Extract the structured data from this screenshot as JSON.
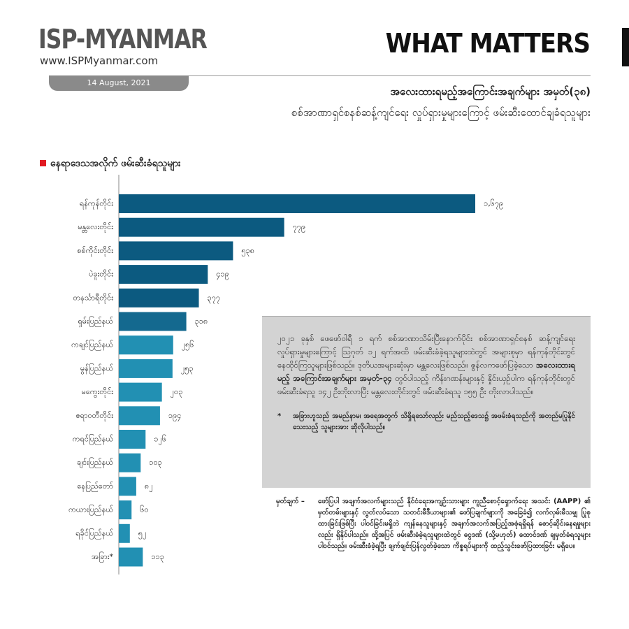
{
  "header": {
    "brand": "ISP-MYANMAR",
    "website": "www.ISPMyanmar.com",
    "date": "14 August, 2021",
    "series_name": "WHAT MATTERS",
    "title": "အလေးထားရမည့်အကြောင်းအချက်များ အမှတ်(၃၈)",
    "subtitle": "စစ်အာဏာရှင်စနစ်ဆန့်ကျင်ရေး လှုပ်ရှားမှုများကြောင့် ဖမ်းဆီးထောင်ချခံရသူများ"
  },
  "chart_data": {
    "type": "bar",
    "orientation": "horizontal",
    "title": "နေရာဒေသအလိုက် ဖမ်းဆီးခံရသူများ",
    "categories": [
      "ရန်ကုန်တိုင်း",
      "မန္တလေးတိုင်း",
      "စစ်ကိုင်းတိုင်း",
      "ပဲခူးတိုင်း",
      "တနင်္သာရီတိုင်း",
      "ရှမ်းပြည်နယ်",
      "ကချင်ပြည်နယ်",
      "မွန်ပြည်နယ်",
      "မကွေးတိုင်း",
      "ဧရာဝတီတိုင်း",
      "ကရင်ပြည်နယ်",
      "ချင်းပြည်နယ်",
      "နေပြည်တော်",
      "ကယားပြည်နယ်",
      "ရခိုင်ပြည်နယ်",
      "အခြား*"
    ],
    "values": [
      1679,
      779,
      538,
      419,
      377,
      318,
      256,
      253,
      203,
      194,
      126,
      103,
      82,
      60,
      52,
      113
    ],
    "value_labels": [
      "၁,၆၇၉",
      "၇၇၉",
      "၅၃၈",
      "၄၁၉",
      "၃၇၇",
      "၃၁၈",
      "၂၅၆",
      "၂၅၃",
      "၂၀၃",
      "၁၉၄",
      "၁၂၆",
      "၁၀၃",
      "၈၂",
      "၆၀",
      "၅၂",
      "၁၁၃"
    ],
    "colors": [
      "#0c5a80",
      "#0c5a80",
      "#0c5a80",
      "#0c5a80",
      "#0c5a80",
      "#14698f",
      "#2290b3",
      "#2290b3",
      "#2290b3",
      "#2290b3",
      "#2290b3",
      "#2290b3",
      "#2290b3",
      "#2290b3",
      "#2290b3",
      "#2290b3"
    ]
  },
  "summary": {
    "text_1": "၂၀၂၁ ခုနှစ် ဖေဖော်ဝါရီ ၁ ရက် စစ်အာဏာသိမ်းပြီးနောက်ပိုင်း စစ်အာဏာရှင်စနစ် ဆန့်ကျင်ရေး လှုပ်ရှားမှုများကြောင့် ဩဂုတ် ၁၂ ရက်အထိ ဖမ်းဆီးခံခဲ့ရသူများထဲတွင် အများစုမှာ ရန်ကုန်တိုင်းတွင် နေထိုင်ကြသူများဖြစ်သည်။ ဒုတိယအများဆုံးမှာ မန္တလေးဖြစ်သည်။ ဇွန်လကဖော်ပြခဲ့သော ",
    "bold": "အလေးထားရမည့် အကြောင်းအချက်များ အမှတ်-၃၄",
    "text_2": " တွင်ပါသည့် ကိန်းဂဏန်းများနှင့် နှိုင်းယှဉ်ပါက ရန်ကုန်တိုင်းတွင် ဖမ်းဆီးခံရသူ ၁၄၂ ဦးတိုးလာပြီး မန္တလေးတိုင်းတွင် ဖမ်းဆီးခံရသူ ၁၅၅ ဦး တိုးလာပါသည်။",
    "note_mark": "*",
    "note": "အခြားဟူသည် အမည်နာမ၊ အရေအတွက် သိရှိရသော်လည်း မည်သည့်ဒေသ၌ အဖမ်းခံရသည်ကို အတည်မပြုနိုင်သေးသည့် သူများအား ဆိုလိုပါသည်။"
  },
  "footnote": {
    "label": "မှတ်ချက် –",
    "text": "ဖော်ပြပါ အချက်အလက်များသည် နိုင်ငံရေးအကျဉ်းသားများ ကူညီစောင့်ရှောက်ရေး အသင်း (AAPP) ၏ မှတ်တမ်းများနှင့် လွတ်လပ်သော သတင်းမီဒီယာများ၏ ဖော်ပြချက်များကို အခြေခံ၍ လက်လှမ်းမီသမျှ ပြုစုထားခြင်းဖြစ်ပြီး ပါဝင်ခြင်းမရှိဘဲ ကျန်နေသူများနှင့် အချက်အလက်အပြည့်အစုံရရှိရန် စောင့်ဆိုင်းနေရမှုများလည်း ရှိနိုင်ပါသည်။ ထို့အပြင် ဖမ်းဆီးခံခဲ့ရသူများထဲတွင် ငွေဒဏ် (သို့မဟုတ်) ထောင်ဒဏ် ချမှတ်ခံရသူများ ပါဝင်သည်။ ဖမ်းဆီးခံခဲ့ရပြီး ချက်ချင်းပြန်လွတ်ခဲ့သော ကိစ္စရပ်များကို ထည့်သွင်းဖော်ပြထားခြင်း မရှိပေ။"
  }
}
